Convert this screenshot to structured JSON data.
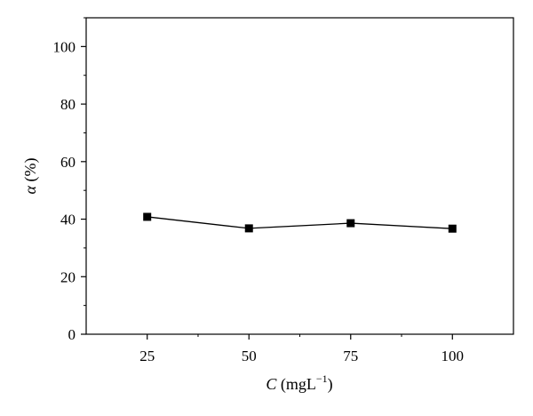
{
  "chart_data": {
    "type": "line",
    "x": [
      25,
      50,
      75,
      100
    ],
    "series": [
      {
        "values": [
          40.8,
          36.8,
          38.6,
          36.7
        ]
      }
    ],
    "x_ticks": [
      "25",
      "50",
      "75",
      "100"
    ],
    "y_ticks": [
      "0",
      "20",
      "40",
      "60",
      "80",
      "100"
    ],
    "xlabel": {
      "italic": "C",
      "text": " (mgL",
      "sup": "−1",
      "close": ")"
    },
    "ylabel": {
      "italic": "α",
      "text": " (%)"
    },
    "xlim": [
      10,
      115
    ],
    "ylim": [
      0,
      110
    ],
    "grid": false,
    "legend": "none",
    "marker": "square",
    "line_color": "#000000",
    "marker_color": "#000000"
  }
}
